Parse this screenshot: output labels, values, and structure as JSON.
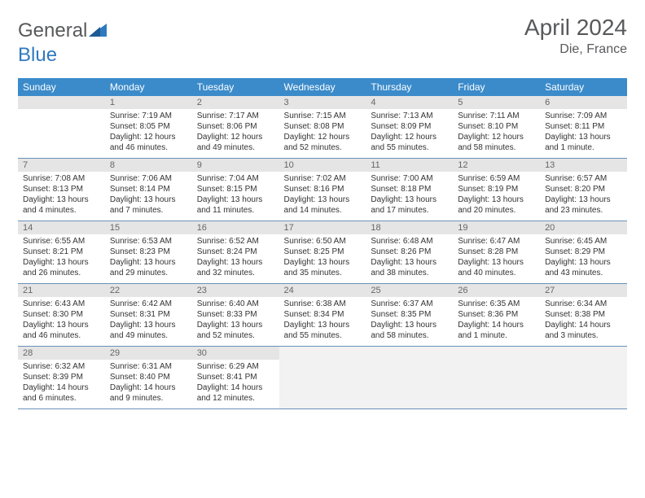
{
  "brand": {
    "general": "General",
    "blue": "Blue"
  },
  "title": "April 2024",
  "location": "Die, France",
  "colors": {
    "header_bg": "#3b8bca",
    "num_bg": "#e5e5e5",
    "tail_bg": "#f2f2f2",
    "rule": "#6a90b8",
    "text": "#333333",
    "muted": "#58595b"
  },
  "dow": [
    "Sunday",
    "Monday",
    "Tuesday",
    "Wednesday",
    "Thursday",
    "Friday",
    "Saturday"
  ],
  "weeks": [
    [
      null,
      {
        "n": "1",
        "sr": "Sunrise: 7:19 AM",
        "ss": "Sunset: 8:05 PM",
        "dl": "Daylight: 12 hours and 46 minutes."
      },
      {
        "n": "2",
        "sr": "Sunrise: 7:17 AM",
        "ss": "Sunset: 8:06 PM",
        "dl": "Daylight: 12 hours and 49 minutes."
      },
      {
        "n": "3",
        "sr": "Sunrise: 7:15 AM",
        "ss": "Sunset: 8:08 PM",
        "dl": "Daylight: 12 hours and 52 minutes."
      },
      {
        "n": "4",
        "sr": "Sunrise: 7:13 AM",
        "ss": "Sunset: 8:09 PM",
        "dl": "Daylight: 12 hours and 55 minutes."
      },
      {
        "n": "5",
        "sr": "Sunrise: 7:11 AM",
        "ss": "Sunset: 8:10 PM",
        "dl": "Daylight: 12 hours and 58 minutes."
      },
      {
        "n": "6",
        "sr": "Sunrise: 7:09 AM",
        "ss": "Sunset: 8:11 PM",
        "dl": "Daylight: 13 hours and 1 minute."
      }
    ],
    [
      {
        "n": "7",
        "sr": "Sunrise: 7:08 AM",
        "ss": "Sunset: 8:13 PM",
        "dl": "Daylight: 13 hours and 4 minutes."
      },
      {
        "n": "8",
        "sr": "Sunrise: 7:06 AM",
        "ss": "Sunset: 8:14 PM",
        "dl": "Daylight: 13 hours and 7 minutes."
      },
      {
        "n": "9",
        "sr": "Sunrise: 7:04 AM",
        "ss": "Sunset: 8:15 PM",
        "dl": "Daylight: 13 hours and 11 minutes."
      },
      {
        "n": "10",
        "sr": "Sunrise: 7:02 AM",
        "ss": "Sunset: 8:16 PM",
        "dl": "Daylight: 13 hours and 14 minutes."
      },
      {
        "n": "11",
        "sr": "Sunrise: 7:00 AM",
        "ss": "Sunset: 8:18 PM",
        "dl": "Daylight: 13 hours and 17 minutes."
      },
      {
        "n": "12",
        "sr": "Sunrise: 6:59 AM",
        "ss": "Sunset: 8:19 PM",
        "dl": "Daylight: 13 hours and 20 minutes."
      },
      {
        "n": "13",
        "sr": "Sunrise: 6:57 AM",
        "ss": "Sunset: 8:20 PM",
        "dl": "Daylight: 13 hours and 23 minutes."
      }
    ],
    [
      {
        "n": "14",
        "sr": "Sunrise: 6:55 AM",
        "ss": "Sunset: 8:21 PM",
        "dl": "Daylight: 13 hours and 26 minutes."
      },
      {
        "n": "15",
        "sr": "Sunrise: 6:53 AM",
        "ss": "Sunset: 8:23 PM",
        "dl": "Daylight: 13 hours and 29 minutes."
      },
      {
        "n": "16",
        "sr": "Sunrise: 6:52 AM",
        "ss": "Sunset: 8:24 PM",
        "dl": "Daylight: 13 hours and 32 minutes."
      },
      {
        "n": "17",
        "sr": "Sunrise: 6:50 AM",
        "ss": "Sunset: 8:25 PM",
        "dl": "Daylight: 13 hours and 35 minutes."
      },
      {
        "n": "18",
        "sr": "Sunrise: 6:48 AM",
        "ss": "Sunset: 8:26 PM",
        "dl": "Daylight: 13 hours and 38 minutes."
      },
      {
        "n": "19",
        "sr": "Sunrise: 6:47 AM",
        "ss": "Sunset: 8:28 PM",
        "dl": "Daylight: 13 hours and 40 minutes."
      },
      {
        "n": "20",
        "sr": "Sunrise: 6:45 AM",
        "ss": "Sunset: 8:29 PM",
        "dl": "Daylight: 13 hours and 43 minutes."
      }
    ],
    [
      {
        "n": "21",
        "sr": "Sunrise: 6:43 AM",
        "ss": "Sunset: 8:30 PM",
        "dl": "Daylight: 13 hours and 46 minutes."
      },
      {
        "n": "22",
        "sr": "Sunrise: 6:42 AM",
        "ss": "Sunset: 8:31 PM",
        "dl": "Daylight: 13 hours and 49 minutes."
      },
      {
        "n": "23",
        "sr": "Sunrise: 6:40 AM",
        "ss": "Sunset: 8:33 PM",
        "dl": "Daylight: 13 hours and 52 minutes."
      },
      {
        "n": "24",
        "sr": "Sunrise: 6:38 AM",
        "ss": "Sunset: 8:34 PM",
        "dl": "Daylight: 13 hours and 55 minutes."
      },
      {
        "n": "25",
        "sr": "Sunrise: 6:37 AM",
        "ss": "Sunset: 8:35 PM",
        "dl": "Daylight: 13 hours and 58 minutes."
      },
      {
        "n": "26",
        "sr": "Sunrise: 6:35 AM",
        "ss": "Sunset: 8:36 PM",
        "dl": "Daylight: 14 hours and 1 minute."
      },
      {
        "n": "27",
        "sr": "Sunrise: 6:34 AM",
        "ss": "Sunset: 8:38 PM",
        "dl": "Daylight: 14 hours and 3 minutes."
      }
    ],
    [
      {
        "n": "28",
        "sr": "Sunrise: 6:32 AM",
        "ss": "Sunset: 8:39 PM",
        "dl": "Daylight: 14 hours and 6 minutes."
      },
      {
        "n": "29",
        "sr": "Sunrise: 6:31 AM",
        "ss": "Sunset: 8:40 PM",
        "dl": "Daylight: 14 hours and 9 minutes."
      },
      {
        "n": "30",
        "sr": "Sunrise: 6:29 AM",
        "ss": "Sunset: 8:41 PM",
        "dl": "Daylight: 14 hours and 12 minutes."
      },
      {
        "tail": true
      },
      {
        "tail": true
      },
      {
        "tail": true
      },
      {
        "tail": true
      }
    ]
  ]
}
